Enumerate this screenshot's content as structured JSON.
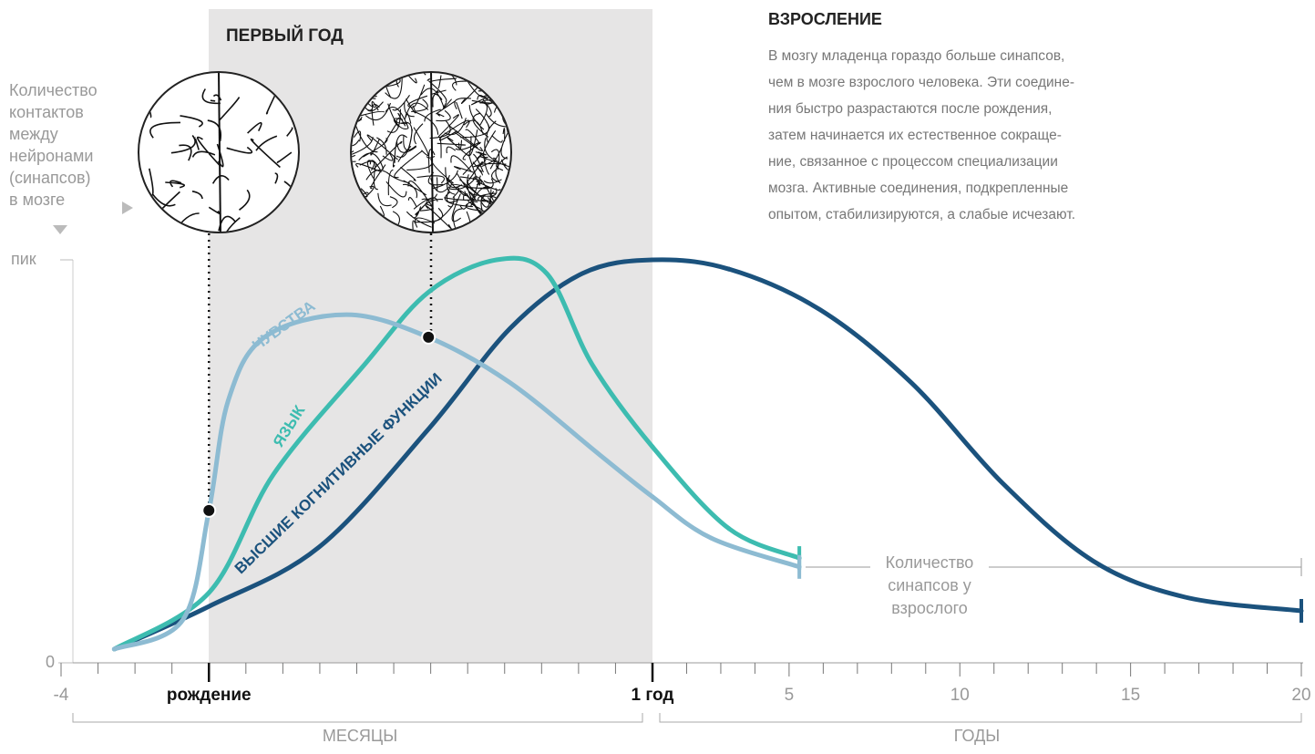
{
  "chart_data": {
    "type": "line",
    "y_label": [
      "Количество",
      "контактов",
      "между",
      "нейронами",
      "(синапсов)",
      "в мозге"
    ],
    "shade_title": "ПЕРВЫЙ ГОД",
    "side_title": "ВЗРОСЛЕНИЕ",
    "side_text": [
      "В мозгу младенца гораздо больше синапсов,",
      "чем в мозге взрослого человека. Эти соедине-",
      "ния быстро разрастаются после рождения,",
      "затем начинается их естественное сокраще-",
      "ние, связанное с процессом специализации",
      "мозга. Активные соединения, подкрепленные",
      "опытом, стабилизируются, а слабые исчезают."
    ],
    "adult_label": [
      "Количество",
      "синапсов у",
      "взрослого"
    ],
    "ylim": [
      0,
      100
    ],
    "yticks": [
      0,
      {
        "value": 100,
        "label": "пик"
      }
    ],
    "x_axis": {
      "months": {
        "label": "МЕСЯЦЫ",
        "xlim": [
          -4,
          12
        ],
        "xticks": [
          -4,
          {
            "value": 0,
            "label": "рождение"
          },
          {
            "value": 12,
            "label": "1 год"
          }
        ],
        "minor_xticks": [
          -3,
          -2,
          -1,
          1,
          2,
          3,
          4,
          5,
          6,
          7,
          8,
          9,
          10,
          11
        ]
      },
      "years": {
        "label": "ГОДЫ",
        "xlim": [
          1,
          20
        ],
        "xticks": [
          5,
          10,
          15,
          20
        ],
        "minor_xticks": [
          2,
          3,
          4,
          6,
          7,
          8,
          9,
          11,
          12,
          13,
          14,
          16,
          17,
          18,
          19
        ]
      }
    },
    "series": [
      {
        "name": "ЧУВСТВА",
        "color": "#8dbbd2",
        "months": {
          "x": [
            -2.56,
            -0.71,
            0,
            0.52,
            1.5,
            3.72,
            5.94,
            8.15,
            10.6,
            12
          ],
          "values": [
            3.4,
            10.6,
            37.8,
            65,
            80.8,
            86.4,
            80.8,
            69.5,
            51.4,
            41.2
          ]
        },
        "years": {
          "x": [
            2.71,
            5.3
          ],
          "values": [
            31,
            23.8
          ]
        }
      },
      {
        "name": "ЯЗЫК",
        "color": "#3dbcb0",
        "months": {
          "x": [
            -2.56,
            0,
            1.75,
            4.21,
            5.94,
            7.78,
            9.14,
            10.37,
            12
          ],
          "values": [
            3.4,
            17.4,
            46.8,
            74,
            92,
            100,
            96.6,
            74,
            53.6
          ]
        },
        "years": {
          "x": [
            3.24,
            5.3
          ],
          "values": [
            33.3,
            26
          ]
        }
      },
      {
        "name": "ВЫСШИЕ КОГНИТИВНЫЕ ФУНКЦИИ",
        "color": "#1b527d",
        "months": {
          "x": [
            -2.56,
            0,
            2.98,
            5.94,
            8.15,
            10.1,
            12
          ],
          "values": [
            3.4,
            14,
            28.7,
            58,
            83,
            96.6,
            100
          ]
        },
        "years": {
          "x": [
            3.24,
            5.91,
            8.58,
            11.25,
            13.9,
            16.6,
            20
          ],
          "values": [
            97.7,
            87.6,
            69.5,
            44.6,
            25.3,
            16.3,
            12.9
          ]
        }
      }
    ]
  }
}
